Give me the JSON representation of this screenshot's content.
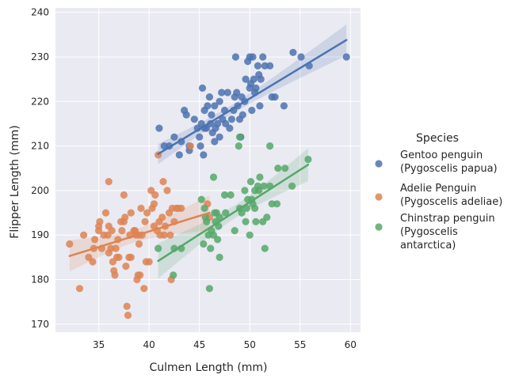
{
  "chart_data": {
    "type": "scatter",
    "xlabel": "Culmen Length (mm)",
    "ylabel": "Flipper Length (mm)",
    "xlim": [
      30.7,
      61.0
    ],
    "ylim": [
      168.2,
      241.0
    ],
    "xticks": [
      35,
      40,
      45,
      50,
      55,
      60
    ],
    "yticks": [
      170,
      180,
      190,
      200,
      210,
      220,
      230,
      240
    ],
    "grid": true,
    "background": "#eaeaf2",
    "legend": {
      "title": "Species",
      "placement": "right"
    },
    "series": [
      {
        "name": "Gentoo penguin (Pygoscelis papua)",
        "legend_lines": [
          "Gentoo penguin",
          "(Pygoscelis papua)"
        ],
        "color": "#4c72b0",
        "regression": {
          "x": [
            40.9,
            59.6
          ],
          "y": [
            208.2,
            233.8
          ]
        },
        "points": [
          [
            41.0,
            214
          ],
          [
            41.5,
            210
          ],
          [
            42.0,
            210
          ],
          [
            42.5,
            212
          ],
          [
            43.0,
            208
          ],
          [
            43.2,
            211
          ],
          [
            43.5,
            218
          ],
          [
            43.7,
            217
          ],
          [
            44.0,
            209
          ],
          [
            44.0,
            210
          ],
          [
            44.5,
            216
          ],
          [
            44.8,
            214
          ],
          [
            45.0,
            212
          ],
          [
            45.1,
            210
          ],
          [
            45.2,
            215
          ],
          [
            45.3,
            223
          ],
          [
            45.4,
            208
          ],
          [
            45.5,
            214
          ],
          [
            45.5,
            218
          ],
          [
            45.7,
            214
          ],
          [
            45.8,
            219
          ],
          [
            46.0,
            221
          ],
          [
            46.1,
            215
          ],
          [
            46.2,
            217
          ],
          [
            46.3,
            213
          ],
          [
            46.5,
            219
          ],
          [
            46.5,
            211
          ],
          [
            46.6,
            214
          ],
          [
            46.8,
            215
          ],
          [
            47.0,
            220
          ],
          [
            47.0,
            212
          ],
          [
            47.2,
            222
          ],
          [
            47.3,
            216
          ],
          [
            47.5,
            218
          ],
          [
            47.6,
            215
          ],
          [
            47.8,
            222
          ],
          [
            48.0,
            214
          ],
          [
            48.2,
            216
          ],
          [
            48.4,
            218
          ],
          [
            48.5,
            221
          ],
          [
            48.6,
            230
          ],
          [
            48.7,
            222
          ],
          [
            48.8,
            219
          ],
          [
            49.0,
            216
          ],
          [
            49.1,
            212
          ],
          [
            49.2,
            221
          ],
          [
            49.3,
            217
          ],
          [
            49.5,
            220
          ],
          [
            49.6,
            225
          ],
          [
            49.8,
            229
          ],
          [
            50.0,
            230
          ],
          [
            50.0,
            223
          ],
          [
            50.1,
            224
          ],
          [
            50.2,
            218
          ],
          [
            50.3,
            230
          ],
          [
            50.4,
            225
          ],
          [
            50.5,
            222
          ],
          [
            50.6,
            223
          ],
          [
            50.8,
            228
          ],
          [
            50.9,
            226
          ],
          [
            51.0,
            219
          ],
          [
            51.1,
            225
          ],
          [
            51.3,
            230
          ],
          [
            51.5,
            228
          ],
          [
            52.0,
            228
          ],
          [
            52.2,
            221
          ],
          [
            52.5,
            221
          ],
          [
            53.4,
            219
          ],
          [
            54.3,
            231
          ],
          [
            55.1,
            230
          ],
          [
            55.9,
            228
          ],
          [
            59.6,
            230
          ]
        ]
      },
      {
        "name": "Adelie Penguin (Pygoscelis adeliae)",
        "legend_lines": [
          "Adelie Penguin",
          "(Pygoscelis adeliae)"
        ],
        "color": "#dd8452",
        "regression": {
          "x": [
            32.1,
            46.0
          ],
          "y": [
            185.3,
            195.0
          ]
        },
        "points": [
          [
            32.1,
            188
          ],
          [
            33.1,
            178
          ],
          [
            33.5,
            190
          ],
          [
            34.0,
            185
          ],
          [
            34.4,
            184
          ],
          [
            34.5,
            187
          ],
          [
            34.6,
            189
          ],
          [
            35.0,
            192
          ],
          [
            35.1,
            193
          ],
          [
            35.3,
            187
          ],
          [
            35.5,
            190
          ],
          [
            35.7,
            195
          ],
          [
            35.9,
            190
          ],
          [
            36.0,
            186
          ],
          [
            36.0,
            202
          ],
          [
            36.2,
            187
          ],
          [
            36.3,
            191
          ],
          [
            36.4,
            184
          ],
          [
            36.5,
            182
          ],
          [
            36.6,
            181
          ],
          [
            36.7,
            187
          ],
          [
            36.8,
            185
          ],
          [
            36.9,
            189
          ],
          [
            37.0,
            185
          ],
          [
            37.2,
            193
          ],
          [
            37.3,
            191
          ],
          [
            37.5,
            199
          ],
          [
            37.6,
            194
          ],
          [
            37.7,
            183
          ],
          [
            37.8,
            174
          ],
          [
            37.9,
            172
          ],
          [
            38.0,
            185
          ],
          [
            38.1,
            190
          ],
          [
            38.2,
            195
          ],
          [
            38.5,
            191
          ],
          [
            38.6,
            191
          ],
          [
            38.7,
            190
          ],
          [
            38.8,
            180
          ],
          [
            38.9,
            181
          ],
          [
            39.0,
            188
          ],
          [
            39.1,
            181
          ],
          [
            39.2,
            196
          ],
          [
            39.3,
            190
          ],
          [
            39.5,
            178
          ],
          [
            39.6,
            193
          ],
          [
            39.7,
            184
          ],
          [
            39.8,
            195
          ],
          [
            40.0,
            184
          ],
          [
            40.2,
            200
          ],
          [
            40.3,
            196
          ],
          [
            40.5,
            192
          ],
          [
            40.6,
            199
          ],
          [
            40.8,
            191
          ],
          [
            40.9,
            208
          ],
          [
            41.0,
            193
          ],
          [
            41.1,
            190
          ],
          [
            41.3,
            194
          ],
          [
            41.4,
            202
          ],
          [
            41.5,
            190
          ],
          [
            41.6,
            192
          ],
          [
            41.8,
            200
          ],
          [
            42.0,
            195
          ],
          [
            42.1,
            190
          ],
          [
            42.2,
            180
          ],
          [
            42.3,
            196
          ],
          [
            42.5,
            193
          ],
          [
            42.7,
            196
          ],
          [
            42.9,
            196
          ],
          [
            43.2,
            196
          ],
          [
            44.1,
            210
          ],
          [
            45.8,
            197
          ],
          [
            46.0,
            194
          ],
          [
            37.5,
            193
          ],
          [
            38.2,
            185
          ],
          [
            39.0,
            190
          ],
          [
            40.5,
            197
          ],
          [
            36.0,
            192
          ],
          [
            35.0,
            191
          ]
        ]
      },
      {
        "name": "Chinstrap penguin (Pygoscelis antarctica)",
        "legend_lines": [
          "Chinstrap penguin",
          "(Pygoscelis",
          "antarctica)"
        ],
        "color": "#55a868",
        "regression": {
          "x": [
            40.9,
            55.8
          ],
          "y": [
            184.2,
            205.8
          ]
        },
        "points": [
          [
            40.9,
            187
          ],
          [
            42.4,
            181
          ],
          [
            42.5,
            187
          ],
          [
            43.2,
            187
          ],
          [
            45.2,
            198
          ],
          [
            45.4,
            188
          ],
          [
            45.5,
            196
          ],
          [
            45.6,
            194
          ],
          [
            45.7,
            193
          ],
          [
            45.9,
            190
          ],
          [
            46.0,
            178
          ],
          [
            46.1,
            187
          ],
          [
            46.2,
            191
          ],
          [
            46.4,
            190
          ],
          [
            46.5,
            195
          ],
          [
            46.6,
            193
          ],
          [
            46.7,
            195
          ],
          [
            46.8,
            189
          ],
          [
            46.9,
            192
          ],
          [
            47.0,
            185
          ],
          [
            47.5,
            199
          ],
          [
            47.6,
            195
          ],
          [
            48.1,
            199
          ],
          [
            48.5,
            191
          ],
          [
            48.9,
            210
          ],
          [
            49.0,
            196
          ],
          [
            49.2,
            195
          ],
          [
            49.5,
            200
          ],
          [
            49.6,
            193
          ],
          [
            49.7,
            196
          ],
          [
            49.8,
            198
          ],
          [
            50.0,
            190
          ],
          [
            50.1,
            202
          ],
          [
            50.2,
            198
          ],
          [
            50.3,
            197
          ],
          [
            50.5,
            196
          ],
          [
            50.6,
            193
          ],
          [
            50.8,
            201
          ],
          [
            50.9,
            200
          ],
          [
            51.0,
            203
          ],
          [
            51.3,
            193
          ],
          [
            51.4,
            201
          ],
          [
            51.5,
            187
          ],
          [
            51.7,
            194
          ],
          [
            52.0,
            210
          ],
          [
            52.0,
            201
          ],
          [
            52.2,
            197
          ],
          [
            52.7,
            197
          ],
          [
            52.8,
            205
          ],
          [
            53.5,
            205
          ],
          [
            54.2,
            201
          ],
          [
            55.8,
            207
          ],
          [
            50.5,
            200
          ],
          [
            49.0,
            212
          ],
          [
            46.4,
            203
          ],
          [
            47.0,
            194
          ]
        ]
      }
    ]
  }
}
